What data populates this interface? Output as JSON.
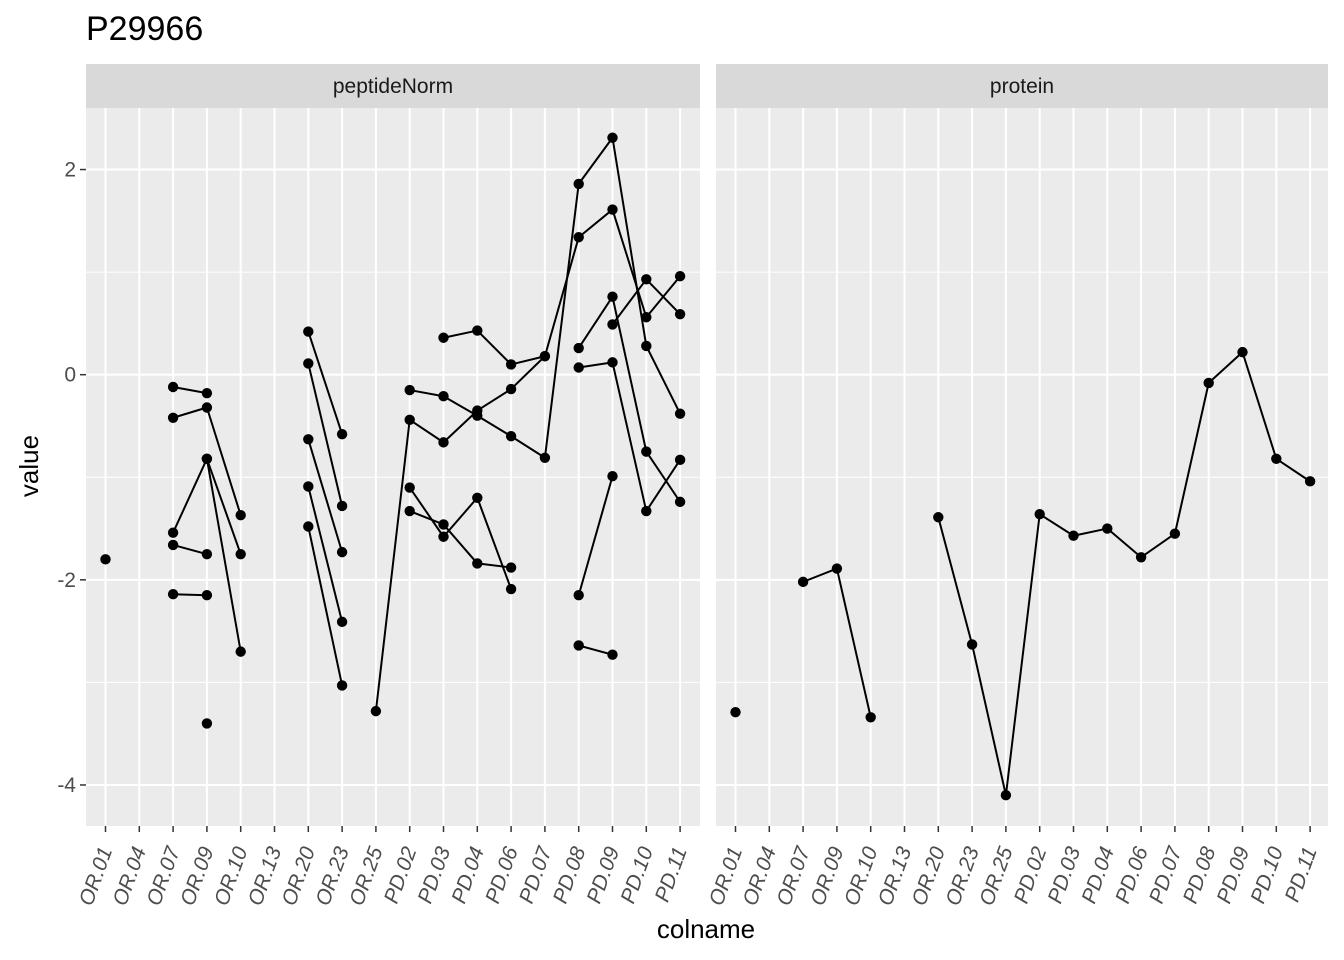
{
  "chart_data": {
    "type": "line",
    "title": "P29966",
    "xlabel": "colname",
    "ylabel": "value",
    "ylim": [
      -4.4,
      2.6
    ],
    "yticks": [
      -4,
      -2,
      0,
      2
    ],
    "ytick_labels": [
      "-4",
      "-2",
      "0",
      "2"
    ],
    "grid": true,
    "categories": [
      "OR.01",
      "OR.04",
      "OR.07",
      "OR.09",
      "OR.10",
      "OR.13",
      "OR.20",
      "OR.23",
      "OR.25",
      "PD.02",
      "PD.03",
      "PD.04",
      "PD.06",
      "PD.07",
      "PD.08",
      "PD.09",
      "PD.10",
      "PD.11"
    ],
    "facets": [
      {
        "label": "peptideNorm",
        "series": [
          {
            "values": [
              -1.8,
              null,
              -0.12,
              -0.18,
              null,
              null,
              null,
              null,
              null,
              null,
              null,
              null,
              null,
              null,
              null,
              null,
              null,
              null
            ]
          },
          {
            "values": [
              null,
              null,
              -0.42,
              -0.32,
              -1.37,
              null,
              null,
              null,
              null,
              null,
              null,
              null,
              null,
              null,
              null,
              null,
              null,
              null
            ]
          },
          {
            "values": [
              null,
              null,
              -1.54,
              -0.82,
              -2.7,
              null,
              null,
              null,
              null,
              null,
              null,
              null,
              null,
              null,
              null,
              null,
              null,
              null
            ]
          },
          {
            "values": [
              null,
              null,
              -1.66,
              -1.75,
              null,
              null,
              null,
              null,
              null,
              null,
              null,
              null,
              null,
              null,
              null,
              null,
              null,
              null
            ]
          },
          {
            "values": [
              null,
              null,
              -2.14,
              -2.15,
              null,
              null,
              null,
              null,
              null,
              null,
              null,
              null,
              null,
              null,
              null,
              null,
              null,
              null
            ]
          },
          {
            "values": [
              null,
              null,
              null,
              -0.82,
              -1.75,
              null,
              null,
              null,
              null,
              null,
              null,
              null,
              null,
              null,
              null,
              null,
              null,
              null
            ]
          },
          {
            "values": [
              null,
              null,
              null,
              -3.4,
              null,
              null,
              null,
              null,
              null,
              null,
              null,
              null,
              null,
              null,
              null,
              null,
              null,
              null
            ]
          },
          {
            "values": [
              null,
              null,
              null,
              null,
              null,
              null,
              0.42,
              -0.58,
              null,
              null,
              null,
              null,
              null,
              null,
              null,
              null,
              null,
              null
            ]
          },
          {
            "values": [
              null,
              null,
              null,
              null,
              null,
              null,
              0.11,
              -1.28,
              null,
              null,
              null,
              null,
              null,
              null,
              null,
              null,
              null,
              null
            ]
          },
          {
            "values": [
              null,
              null,
              null,
              null,
              null,
              null,
              -0.63,
              -1.73,
              null,
              null,
              null,
              null,
              null,
              null,
              null,
              null,
              null,
              null
            ]
          },
          {
            "values": [
              null,
              null,
              null,
              null,
              null,
              null,
              -1.09,
              -2.41,
              null,
              null,
              null,
              null,
              null,
              null,
              null,
              null,
              null,
              null
            ]
          },
          {
            "values": [
              null,
              null,
              null,
              null,
              null,
              null,
              -1.48,
              -3.03,
              null,
              null,
              null,
              null,
              null,
              null,
              null,
              null,
              null,
              null
            ]
          },
          {
            "values": [
              null,
              null,
              null,
              null,
              null,
              null,
              null,
              null,
              -3.28,
              -0.44,
              -0.66,
              -0.35,
              -0.14,
              0.18,
              1.34,
              1.61,
              0.56,
              0.96
            ]
          },
          {
            "values": [
              null,
              null,
              null,
              null,
              null,
              null,
              null,
              null,
              null,
              -0.15,
              -0.21,
              -0.4,
              -0.6,
              -0.81,
              1.86,
              2.31,
              0.28,
              -0.38
            ]
          },
          {
            "values": [
              null,
              null,
              null,
              null,
              null,
              null,
              null,
              null,
              null,
              -1.1,
              -1.58,
              -1.2,
              -2.09,
              null,
              null,
              null,
              null,
              null
            ]
          },
          {
            "values": [
              null,
              null,
              null,
              null,
              null,
              null,
              null,
              null,
              null,
              -1.33,
              -1.46,
              -1.84,
              -1.88,
              null,
              null,
              null,
              null,
              null
            ]
          },
          {
            "values": [
              null,
              null,
              null,
              null,
              null,
              null,
              null,
              null,
              null,
              null,
              0.36,
              0.43,
              0.1,
              0.18,
              null,
              null,
              null,
              null
            ]
          },
          {
            "values": [
              null,
              null,
              null,
              null,
              null,
              null,
              null,
              null,
              null,
              null,
              null,
              null,
              null,
              null,
              0.26,
              0.76,
              -0.75,
              -1.24
            ]
          },
          {
            "values": [
              null,
              null,
              null,
              null,
              null,
              null,
              null,
              null,
              null,
              null,
              null,
              null,
              null,
              null,
              0.07,
              0.12,
              -1.33,
              -0.83
            ]
          },
          {
            "values": [
              null,
              null,
              null,
              null,
              null,
              null,
              null,
              null,
              null,
              null,
              null,
              null,
              null,
              null,
              -2.15,
              -0.99,
              null,
              null
            ]
          },
          {
            "values": [
              null,
              null,
              null,
              null,
              null,
              null,
              null,
              null,
              null,
              null,
              null,
              null,
              null,
              null,
              -2.64,
              -2.73,
              null,
              null
            ]
          },
          {
            "values": [
              null,
              null,
              null,
              null,
              null,
              null,
              null,
              null,
              null,
              null,
              null,
              null,
              null,
              null,
              null,
              0.49,
              0.93,
              0.59
            ]
          }
        ]
      },
      {
        "label": "protein",
        "series": [
          {
            "values": [
              -3.29,
              null,
              -2.02,
              -1.89,
              -3.34,
              null,
              -1.39,
              -2.63,
              -4.1,
              -1.36,
              -1.57,
              -1.5,
              -1.78,
              -1.55,
              -0.08,
              0.22,
              -0.82,
              -1.04
            ]
          }
        ]
      }
    ]
  }
}
